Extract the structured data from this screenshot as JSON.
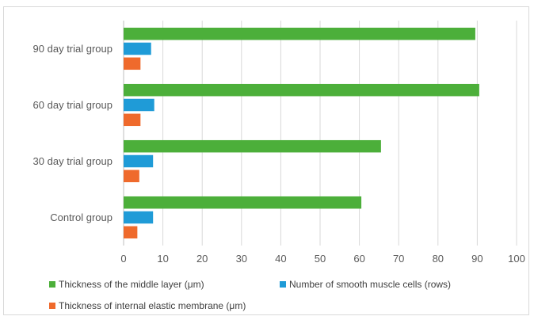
{
  "chart_data": {
    "type": "bar",
    "orientation": "horizontal",
    "categories": [
      "Control group",
      "30 day trial group",
      "60 day trial group",
      "90 day trial group"
    ],
    "series": [
      {
        "name": "Thickness of the middle layer (μm)",
        "color": "#4CAF3A",
        "values": [
          60.5,
          65.5,
          90.5,
          89.5
        ]
      },
      {
        "name": "Number of smooth muscle cells (rows)",
        "color": "#1F9BD7",
        "values": [
          7.5,
          7.5,
          7.8,
          7.0
        ]
      },
      {
        "name": "Thickness of internal elastic membrane (μm)",
        "color": "#EF6A2C",
        "values": [
          3.5,
          4.0,
          4.3,
          4.3
        ]
      }
    ],
    "xticks": [
      "0",
      "10",
      "20",
      "30",
      "40",
      "50",
      "60",
      "70",
      "80",
      "90",
      "100"
    ],
    "xlim": [
      0,
      100
    ],
    "grid": "vertical",
    "legend_position": "bottom"
  }
}
